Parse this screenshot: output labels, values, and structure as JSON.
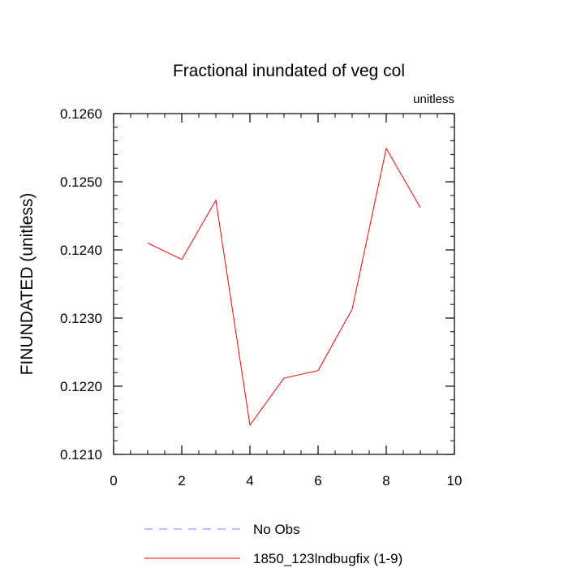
{
  "chart_data": {
    "type": "line",
    "title": "Fractional inundated of veg col",
    "units_label": "unitless",
    "ylabel": "FINUNDATED  (unitless)",
    "xlabel": "",
    "xlim": [
      0,
      10
    ],
    "ylim": [
      0.121,
      0.126
    ],
    "xticks": [
      0,
      2,
      4,
      6,
      8,
      10
    ],
    "xtick_labels": [
      "0",
      "2",
      "4",
      "6",
      "8",
      "10"
    ],
    "yticks": [
      0.121,
      0.122,
      0.123,
      0.124,
      0.125,
      0.126
    ],
    "ytick_labels": [
      "0.1210",
      "0.1220",
      "0.1230",
      "0.1240",
      "0.1250",
      "0.1260"
    ],
    "grid": false,
    "legend_position": "bottom",
    "series": [
      {
        "name": "No Obs",
        "color": "#8080ff",
        "dash": "dashed",
        "x": [],
        "y": []
      },
      {
        "name": "1850_123lndbugfix (1-9)",
        "color": "#ff0000",
        "dash": "solid",
        "x": [
          1,
          2,
          3,
          4,
          5,
          6,
          7,
          8,
          9
        ],
        "y": [
          0.1241,
          0.12386,
          0.12473,
          0.12143,
          0.12212,
          0.12223,
          0.12313,
          0.12549,
          0.12462
        ]
      }
    ]
  }
}
